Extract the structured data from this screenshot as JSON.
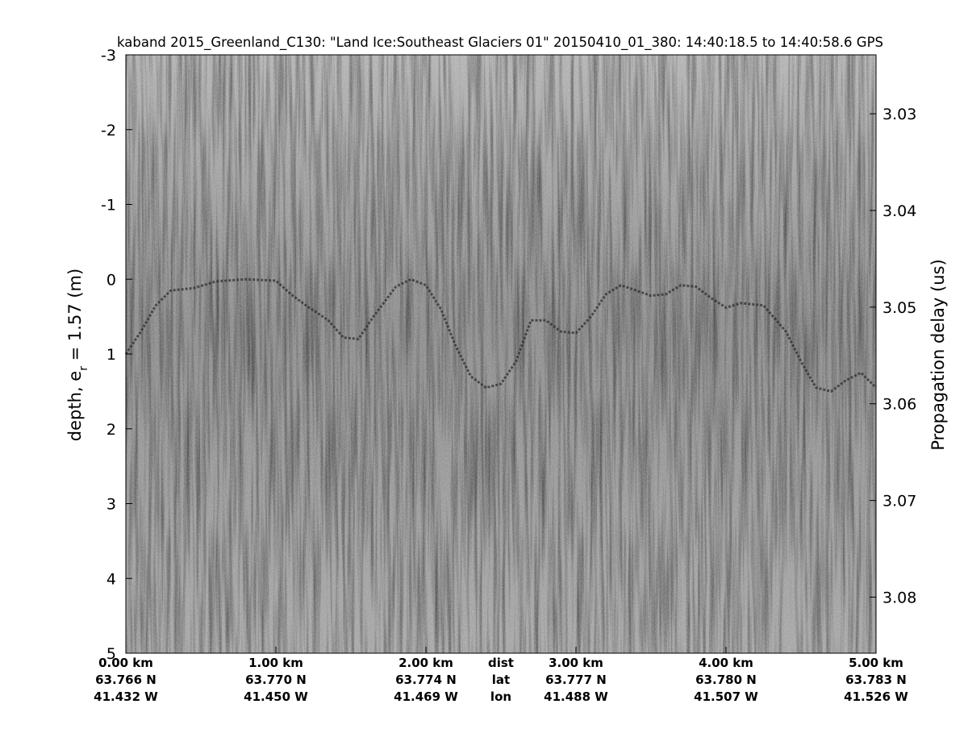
{
  "chart_data": {
    "type": "echogram",
    "title": "kaband 2015_Greenland_C130: \"Land Ice:Southeast Glaciers 01\"  20150410_01_380: 14:40:18.5 to 14:40:58.6 GPS",
    "ylabel": [
      "depth, e",
      "r",
      " = 1.57 (m)"
    ],
    "y2label": "Propagation delay (us)",
    "xlim": [
      0,
      5
    ],
    "xticks": [
      {
        "value": 0,
        "label": "0.00 km"
      },
      {
        "value": 1,
        "label": "1.00 km"
      },
      {
        "value": 2,
        "label": "2.00 km"
      },
      {
        "value": 3,
        "label": "3.00 km"
      },
      {
        "value": 4,
        "label": "4.00 km"
      },
      {
        "value": 5,
        "label": "5.00 km"
      }
    ],
    "xtick_lat": [
      "63.766 N",
      "63.770 N",
      "63.774 N",
      "63.777 N",
      "63.780 N",
      "63.783 N"
    ],
    "xtick_lon": [
      "41.432 W",
      "41.450 W",
      "41.469 W",
      "41.488 W",
      "41.507 W",
      "41.526 W"
    ],
    "x_row_labels": [
      "dist",
      "lat",
      "lon"
    ],
    "ylim": [
      -3,
      5
    ],
    "yticks": [
      -3,
      -2,
      -1,
      0,
      1,
      2,
      3,
      4,
      5
    ],
    "y2lim": [
      3.0239,
      3.0858
    ],
    "y2ticks": [
      3.03,
      3.04,
      3.05,
      3.06,
      3.07,
      3.08
    ],
    "color": "#2a2a2a",
    "x": [
      0,
      0.1,
      0.2,
      0.3,
      0.45,
      0.6,
      0.8,
      1.0,
      1.1,
      1.2,
      1.35,
      1.45,
      1.55,
      1.65,
      1.8,
      1.9,
      2.0,
      2.1,
      2.2,
      2.3,
      2.4,
      2.5,
      2.6,
      2.7,
      2.8,
      2.9,
      3.0,
      3.1,
      3.2,
      3.3,
      3.4,
      3.5,
      3.6,
      3.7,
      3.8,
      3.9,
      4.0,
      4.1,
      4.25,
      4.4,
      4.5,
      4.6,
      4.7,
      4.8,
      4.9,
      5.0
    ],
    "values": [
      1.0,
      0.7,
      0.35,
      0.15,
      0.12,
      0.03,
      0.0,
      0.02,
      0.2,
      0.35,
      0.55,
      0.78,
      0.8,
      0.5,
      0.1,
      0.0,
      0.08,
      0.4,
      0.9,
      1.3,
      1.45,
      1.4,
      1.1,
      0.55,
      0.55,
      0.7,
      0.72,
      0.5,
      0.2,
      0.08,
      0.15,
      0.22,
      0.2,
      0.08,
      0.1,
      0.25,
      0.38,
      0.32,
      0.35,
      0.7,
      1.1,
      1.45,
      1.5,
      1.35,
      1.25,
      1.45
    ]
  }
}
